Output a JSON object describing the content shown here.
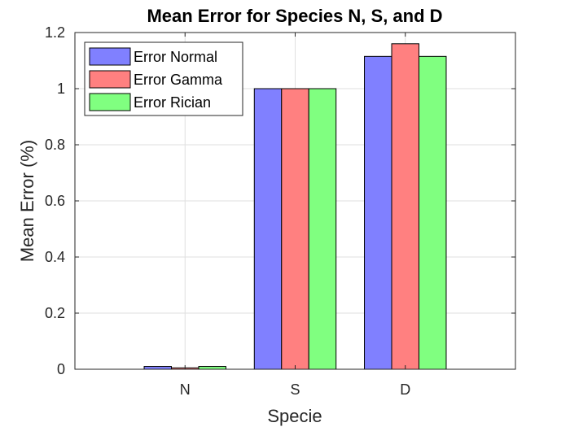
{
  "chart_data": {
    "type": "bar",
    "title": "Mean Error for Species N, S, and D",
    "xlabel": "Specie",
    "ylabel": "Mean Error (%)",
    "categories": [
      "N",
      "S",
      "D"
    ],
    "ylim": [
      0,
      1.2
    ],
    "yticks": [
      0,
      0.2,
      0.4,
      0.6,
      0.8,
      1,
      1.2
    ],
    "grid": true,
    "legend_position": "top-left",
    "series": [
      {
        "name": "Error Normal",
        "color": "#8080ff",
        "values": [
          0.01,
          1.0,
          1.115
        ]
      },
      {
        "name": "Error Gamma",
        "color": "#ff8080",
        "values": [
          0.005,
          1.0,
          1.16
        ]
      },
      {
        "name": "Error Rician",
        "color": "#80ff80",
        "values": [
          0.01,
          1.0,
          1.115
        ]
      }
    ]
  }
}
